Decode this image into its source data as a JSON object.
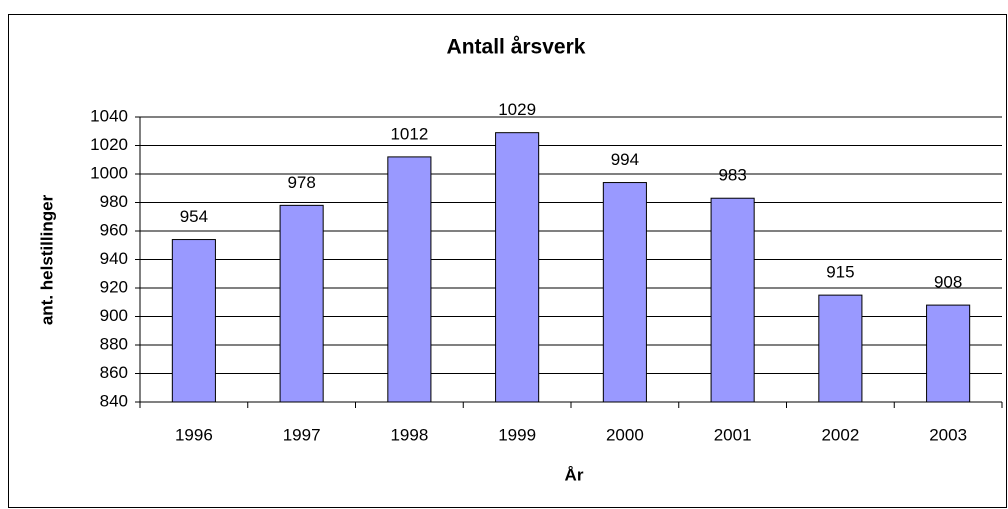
{
  "chart_data": {
    "type": "bar",
    "title": "Antall årsverk",
    "x_label": "År",
    "y_label": "ant. helstillinger",
    "categories": [
      "1996",
      "1997",
      "1998",
      "1999",
      "2000",
      "2001",
      "2002",
      "2003"
    ],
    "values": [
      954,
      978,
      1012,
      1029,
      994,
      983,
      915,
      908
    ],
    "color": "#9999ff",
    "ylim": [
      840,
      1040
    ],
    "yticks": [
      840,
      860,
      880,
      900,
      920,
      940,
      960,
      980,
      1000,
      1020,
      1040
    ],
    "grid": true
  }
}
